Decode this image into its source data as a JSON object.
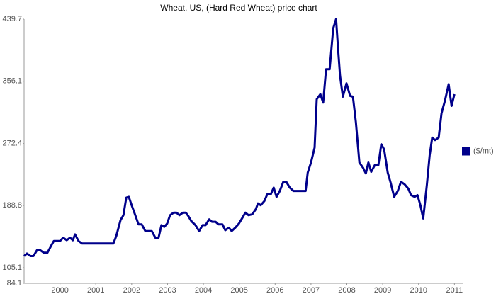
{
  "chart_data": {
    "type": "line",
    "title": "Wheat, US, (Hard Red Wheat)  price chart",
    "x": [
      1999.0,
      1999.08,
      1999.18,
      1999.26,
      1999.36,
      1999.45,
      1999.55,
      1999.65,
      1999.75,
      1999.83,
      2000.0,
      2000.09,
      2000.19,
      2000.28,
      2000.36,
      2000.42,
      2000.52,
      2000.62,
      2001.49,
      2001.57,
      2001.69,
      2001.77,
      2001.85,
      2001.92,
      2002.0,
      2002.1,
      2002.19,
      2002.28,
      2002.38,
      2002.56,
      2002.66,
      2002.75,
      2002.83,
      2002.91,
      2002.99,
      2003.07,
      2003.17,
      2003.25,
      2003.33,
      2003.43,
      2003.51,
      2003.58,
      2003.66,
      2003.78,
      2003.88,
      2003.98,
      2004.06,
      2004.16,
      2004.24,
      2004.34,
      2004.42,
      2004.53,
      2004.61,
      2004.71,
      2004.79,
      2004.89,
      2004.99,
      2005.09,
      2005.17,
      2005.26,
      2005.36,
      2005.46,
      2005.52,
      2005.6,
      2005.7,
      2005.78,
      2005.88,
      2005.96,
      2006.04,
      2006.13,
      2006.23,
      2006.31,
      2006.41,
      2006.51,
      2006.85,
      2006.91,
      2007.0,
      2007.1,
      2007.16,
      2007.26,
      2007.34,
      2007.42,
      2007.52,
      2007.62,
      2007.7,
      2007.75,
      2007.81,
      2007.89,
      2007.99,
      2008.09,
      2008.17,
      2008.25,
      2008.35,
      2008.45,
      2008.53,
      2008.6,
      2008.68,
      2008.78,
      2008.88,
      2008.96,
      2009.04,
      2009.14,
      2009.22,
      2009.32,
      2009.42,
      2009.51,
      2009.61,
      2009.71,
      2009.79,
      2009.89,
      2009.97,
      2010.05,
      2010.13,
      2010.23,
      2010.31,
      2010.38,
      2010.46,
      2010.56,
      2010.64,
      2010.74,
      2010.84,
      2010.92,
      2011.0
    ],
    "series": [
      {
        "name": "($/mt)",
        "color": "#00008b",
        "values": [
          120.8,
          124.2,
          120.8,
          120.8,
          128.7,
          128.7,
          125.3,
          125.3,
          134.3,
          141.0,
          141.0,
          145.5,
          142.2,
          145.5,
          142.2,
          150.0,
          141.0,
          137.7,
          137.7,
          147.8,
          169.1,
          175.8,
          199.4,
          200.5,
          189.3,
          175.8,
          163.5,
          163.5,
          154.5,
          154.5,
          145.5,
          145.5,
          162.4,
          160.1,
          164.6,
          175.8,
          179.2,
          179.2,
          175.8,
          179.2,
          179.2,
          174.7,
          168.0,
          162.4,
          154.5,
          162.4,
          162.4,
          170.2,
          166.9,
          166.9,
          163.5,
          163.5,
          155.6,
          159.0,
          154.5,
          159.0,
          164.6,
          172.5,
          179.2,
          175.8,
          177.0,
          183.7,
          191.6,
          189.3,
          194.9,
          203.9,
          203.9,
          212.9,
          200.5,
          208.4,
          220.8,
          220.8,
          212.9,
          208.4,
          208.4,
          233.1,
          246.6,
          266.8,
          331.9,
          338.6,
          327.4,
          372.3,
          372.3,
          427.3,
          439.7,
          402.6,
          363.3,
          335.3,
          353.2,
          336.4,
          335.3,
          301.6,
          246.6,
          239.8,
          232.0,
          246.6,
          234.2,
          243.2,
          243.2,
          271.3,
          264.5,
          233.1,
          219.6,
          200.5,
          208.4,
          220.8,
          217.4,
          211.8,
          202.8,
          200.5,
          202.8,
          189.3,
          171.4,
          216.3,
          256.7,
          280.3,
          276.9,
          280.3,
          312.8,
          330.8,
          352.1,
          322.9,
          338.6
        ]
      }
    ],
    "xlim": [
      1999,
      2011.25
    ],
    "xticks": [
      2000,
      2001,
      2002,
      2003,
      2004,
      2005,
      2006,
      2007,
      2008,
      2009,
      2010,
      2011
    ],
    "ylim": [
      84.1,
      439.7
    ],
    "yticks": [
      84.1,
      105.1,
      188.8,
      272.4,
      356.1,
      439.7
    ],
    "legend": "right"
  }
}
